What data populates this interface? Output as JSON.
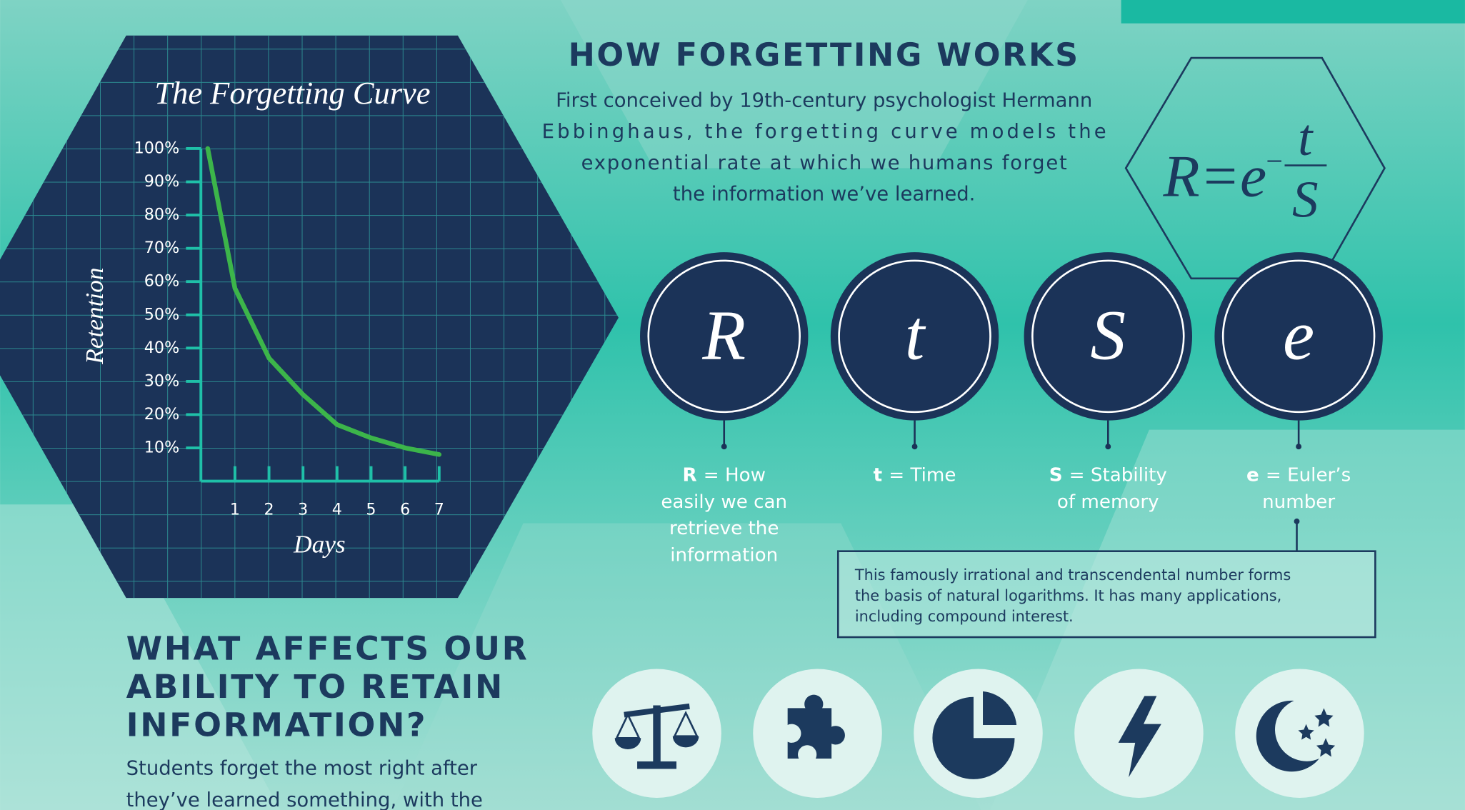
{
  "chart_data": {
    "type": "line",
    "title": "The Forgetting Curve",
    "x_label": "Days",
    "y_label": "Retention",
    "x": [
      0.2,
      1,
      2,
      3,
      4,
      5,
      6,
      7
    ],
    "values": [
      100,
      58,
      37,
      26,
      17,
      13,
      10,
      8
    ],
    "color": "#3cb54a",
    "xlim": [
      0,
      7
    ],
    "ylim": [
      0,
      100
    ],
    "xticks": [
      1,
      2,
      3,
      4,
      5,
      6,
      7
    ],
    "yticks": [
      {
        "value": 10,
        "label": "10%"
      },
      {
        "value": 20,
        "label": "20%"
      },
      {
        "value": 30,
        "label": "30%"
      },
      {
        "value": 40,
        "label": "40%"
      },
      {
        "value": 50,
        "label": "50%"
      },
      {
        "value": 60,
        "label": "60%"
      },
      {
        "value": 70,
        "label": "70%"
      },
      {
        "value": 80,
        "label": "80%"
      },
      {
        "value": 90,
        "label": "90%"
      },
      {
        "value": 100,
        "label": "100%"
      }
    ]
  },
  "intro": {
    "title": "HOW FORGETTING WORKS",
    "lines": [
      "First conceived by 19th-century psychologist Hermann",
      "Ebbinghaus, the forgetting curve models the",
      "exponential rate at which we humans forget",
      "the information we’ve learned."
    ]
  },
  "formula": {
    "base": "R=e",
    "sign": "−",
    "numerator": "t",
    "denominator": "S"
  },
  "variables": [
    {
      "symbol": "R",
      "term": "R",
      "lines": [
        "= How",
        "easily we can",
        "retrieve the",
        "information"
      ]
    },
    {
      "symbol": "t",
      "term": "t",
      "lines": [
        "= Time"
      ]
    },
    {
      "symbol": "S",
      "term": "S",
      "lines": [
        "= Stability",
        "of memory"
      ]
    },
    {
      "symbol": "e",
      "term": "e",
      "lines": [
        "= Euler’s",
        "number"
      ]
    }
  ],
  "note": {
    "lines": [
      "This famously irrational and transcendental number forms",
      "the basis of natural logarithms. It has many applications,",
      "including compound interest."
    ]
  },
  "factors": {
    "title_lines": [
      "WHAT AFFECTS OUR",
      "ABILITY TO RETAIN",
      "INFORMATION?"
    ],
    "lines": [
      "Students forget the most right after",
      "they’ve learned something, with the"
    ]
  }
}
